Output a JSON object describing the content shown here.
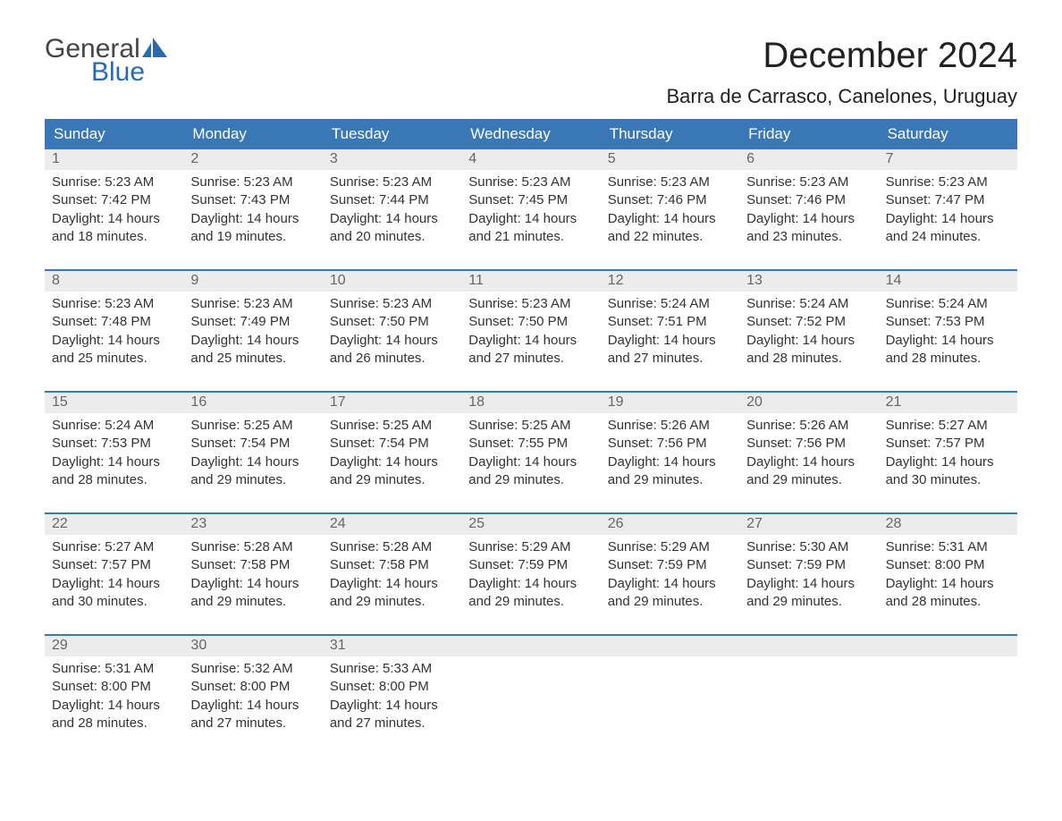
{
  "logo": {
    "word1": "General",
    "word2": "Blue",
    "color_dark": "#444444",
    "color_blue": "#2a6bb0"
  },
  "title": "December 2024",
  "location": "Barra de Carrasco, Canelones, Uruguay",
  "colors": {
    "header_bg": "#3a77b6",
    "header_text": "#ffffff",
    "daynum_bg": "#ececec",
    "daynum_text": "#666666",
    "body_text": "#333333",
    "week_border": "#3a77b6"
  },
  "weekdays": [
    "Sunday",
    "Monday",
    "Tuesday",
    "Wednesday",
    "Thursday",
    "Friday",
    "Saturday"
  ],
  "weeks": [
    [
      {
        "n": "1",
        "sunrise": "5:23 AM",
        "sunset": "7:42 PM",
        "dh": "14",
        "dm": "18"
      },
      {
        "n": "2",
        "sunrise": "5:23 AM",
        "sunset": "7:43 PM",
        "dh": "14",
        "dm": "19"
      },
      {
        "n": "3",
        "sunrise": "5:23 AM",
        "sunset": "7:44 PM",
        "dh": "14",
        "dm": "20"
      },
      {
        "n": "4",
        "sunrise": "5:23 AM",
        "sunset": "7:45 PM",
        "dh": "14",
        "dm": "21"
      },
      {
        "n": "5",
        "sunrise": "5:23 AM",
        "sunset": "7:46 PM",
        "dh": "14",
        "dm": "22"
      },
      {
        "n": "6",
        "sunrise": "5:23 AM",
        "sunset": "7:46 PM",
        "dh": "14",
        "dm": "23"
      },
      {
        "n": "7",
        "sunrise": "5:23 AM",
        "sunset": "7:47 PM",
        "dh": "14",
        "dm": "24"
      }
    ],
    [
      {
        "n": "8",
        "sunrise": "5:23 AM",
        "sunset": "7:48 PM",
        "dh": "14",
        "dm": "25"
      },
      {
        "n": "9",
        "sunrise": "5:23 AM",
        "sunset": "7:49 PM",
        "dh": "14",
        "dm": "25"
      },
      {
        "n": "10",
        "sunrise": "5:23 AM",
        "sunset": "7:50 PM",
        "dh": "14",
        "dm": "26"
      },
      {
        "n": "11",
        "sunrise": "5:23 AM",
        "sunset": "7:50 PM",
        "dh": "14",
        "dm": "27"
      },
      {
        "n": "12",
        "sunrise": "5:24 AM",
        "sunset": "7:51 PM",
        "dh": "14",
        "dm": "27"
      },
      {
        "n": "13",
        "sunrise": "5:24 AM",
        "sunset": "7:52 PM",
        "dh": "14",
        "dm": "28"
      },
      {
        "n": "14",
        "sunrise": "5:24 AM",
        "sunset": "7:53 PM",
        "dh": "14",
        "dm": "28"
      }
    ],
    [
      {
        "n": "15",
        "sunrise": "5:24 AM",
        "sunset": "7:53 PM",
        "dh": "14",
        "dm": "28"
      },
      {
        "n": "16",
        "sunrise": "5:25 AM",
        "sunset": "7:54 PM",
        "dh": "14",
        "dm": "29"
      },
      {
        "n": "17",
        "sunrise": "5:25 AM",
        "sunset": "7:54 PM",
        "dh": "14",
        "dm": "29"
      },
      {
        "n": "18",
        "sunrise": "5:25 AM",
        "sunset": "7:55 PM",
        "dh": "14",
        "dm": "29"
      },
      {
        "n": "19",
        "sunrise": "5:26 AM",
        "sunset": "7:56 PM",
        "dh": "14",
        "dm": "29"
      },
      {
        "n": "20",
        "sunrise": "5:26 AM",
        "sunset": "7:56 PM",
        "dh": "14",
        "dm": "29"
      },
      {
        "n": "21",
        "sunrise": "5:27 AM",
        "sunset": "7:57 PM",
        "dh": "14",
        "dm": "30"
      }
    ],
    [
      {
        "n": "22",
        "sunrise": "5:27 AM",
        "sunset": "7:57 PM",
        "dh": "14",
        "dm": "30"
      },
      {
        "n": "23",
        "sunrise": "5:28 AM",
        "sunset": "7:58 PM",
        "dh": "14",
        "dm": "29"
      },
      {
        "n": "24",
        "sunrise": "5:28 AM",
        "sunset": "7:58 PM",
        "dh": "14",
        "dm": "29"
      },
      {
        "n": "25",
        "sunrise": "5:29 AM",
        "sunset": "7:59 PM",
        "dh": "14",
        "dm": "29"
      },
      {
        "n": "26",
        "sunrise": "5:29 AM",
        "sunset": "7:59 PM",
        "dh": "14",
        "dm": "29"
      },
      {
        "n": "27",
        "sunrise": "5:30 AM",
        "sunset": "7:59 PM",
        "dh": "14",
        "dm": "29"
      },
      {
        "n": "28",
        "sunrise": "5:31 AM",
        "sunset": "8:00 PM",
        "dh": "14",
        "dm": "28"
      }
    ],
    [
      {
        "n": "29",
        "sunrise": "5:31 AM",
        "sunset": "8:00 PM",
        "dh": "14",
        "dm": "28"
      },
      {
        "n": "30",
        "sunrise": "5:32 AM",
        "sunset": "8:00 PM",
        "dh": "14",
        "dm": "27"
      },
      {
        "n": "31",
        "sunrise": "5:33 AM",
        "sunset": "8:00 PM",
        "dh": "14",
        "dm": "27"
      },
      null,
      null,
      null,
      null
    ]
  ],
  "labels": {
    "sunrise": "Sunrise: ",
    "sunset": "Sunset: ",
    "daylight1": "Daylight: ",
    "hours_word": " hours",
    "and_word": "and ",
    "minutes_word": " minutes."
  }
}
